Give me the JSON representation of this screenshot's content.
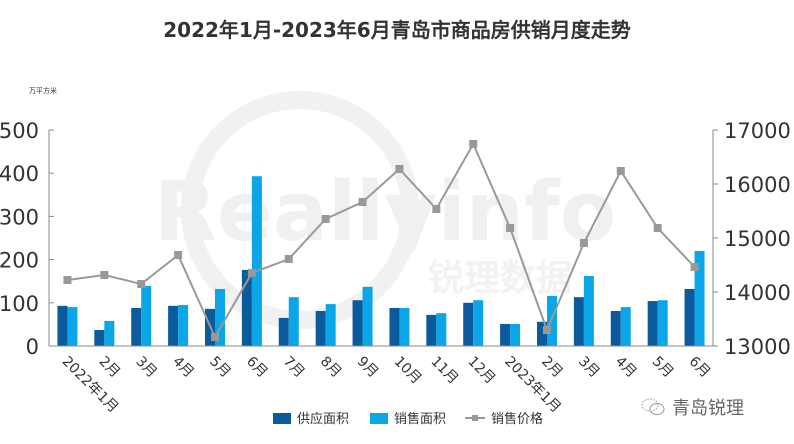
{
  "title": "2022年1月-2023年6月青岛市商品房供销月度走势",
  "unit_label": "万平方米",
  "watermark": {
    "brand_text": "Reallyinfo",
    "brand_cn": "锐理数据",
    "source_text": "青岛锐理"
  },
  "colors": {
    "supply": "#0b5a9c",
    "sales": "#0aa6e8",
    "price": "#999999"
  },
  "chart_data": {
    "type": "bar",
    "title": "2022年1月-2023年6月青岛市商品房供销月度走势",
    "xlabel": "",
    "ylabel": "万平方米",
    "y2label": "",
    "categories": [
      "2022年1月",
      "2月",
      "3月",
      "4月",
      "5月",
      "6月",
      "7月",
      "8月",
      "9月",
      "10月",
      "11月",
      "12月",
      "2023年1月",
      "2月",
      "3月",
      "4月",
      "5月",
      "6月"
    ],
    "ylim": [
      0,
      500
    ],
    "yticks": [
      0,
      100,
      200,
      300,
      400,
      500
    ],
    "y2lim": [
      13000,
      17000
    ],
    "y2ticks": [
      13000,
      14000,
      15000,
      16000,
      17000
    ],
    "grid": false,
    "legend_position": "bottom",
    "series": [
      {
        "name": "供应面积",
        "type": "bar",
        "axis": "left",
        "values": [
          93,
          37,
          88,
          93,
          86,
          176,
          65,
          81,
          106,
          88,
          72,
          100,
          51,
          56,
          113,
          81,
          104,
          132
        ]
      },
      {
        "name": "销售面积",
        "type": "bar",
        "axis": "left",
        "values": [
          90,
          58,
          139,
          95,
          132,
          393,
          113,
          97,
          137,
          88,
          76,
          106,
          51,
          116,
          162,
          90,
          106,
          220
        ]
      },
      {
        "name": "销售价格",
        "type": "line",
        "axis": "right",
        "values": [
          14222,
          14315,
          14148,
          14685,
          13167,
          14352,
          14611,
          15352,
          15667,
          16278,
          15537,
          16741,
          15185,
          13296,
          14907,
          16241,
          15185,
          14463
        ]
      }
    ]
  }
}
